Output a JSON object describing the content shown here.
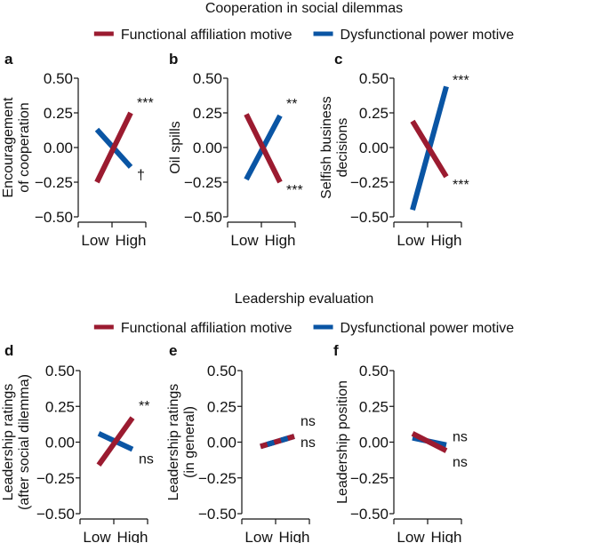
{
  "chart_data": [
    {
      "panel": "a",
      "group": "Cooperation in social dilemmas",
      "type": "line",
      "categories": [
        "Low",
        "High"
      ],
      "ylabel": [
        "Encouragement",
        "of cooperation"
      ],
      "ylim": [
        -0.5,
        0.5
      ],
      "yticks": [
        "0.50",
        "0.25",
        "0.00",
        "−0.25",
        "−0.50"
      ],
      "series": [
        {
          "name": "Functional affiliation motive",
          "values": [
            -0.25,
            0.25
          ],
          "annotation": "***"
        },
        {
          "name": "Dysfunctional power motive",
          "values": [
            0.13,
            -0.14
          ],
          "annotation": "†"
        }
      ]
    },
    {
      "panel": "b",
      "group": "Cooperation in social dilemmas",
      "type": "line",
      "categories": [
        "Low",
        "High"
      ],
      "ylabel": [
        "Oil spills"
      ],
      "ylim": [
        -0.5,
        0.5
      ],
      "yticks": [
        "0.50",
        "0.25",
        "0.00",
        "−0.25",
        "−0.50"
      ],
      "series": [
        {
          "name": "Functional affiliation motive",
          "values": [
            0.24,
            -0.25
          ],
          "annotation": "***"
        },
        {
          "name": "Dysfunctional power motive",
          "values": [
            -0.23,
            0.23
          ],
          "annotation": "**"
        }
      ]
    },
    {
      "panel": "c",
      "group": "Cooperation in social dilemmas",
      "type": "line",
      "categories": [
        "Low",
        "High"
      ],
      "ylabel": [
        "Selfish business",
        "decisions"
      ],
      "ylim": [
        -0.5,
        0.5
      ],
      "yticks": [
        "0.50",
        "0.25",
        "0.00",
        "−0.25",
        "−0.50"
      ],
      "series": [
        {
          "name": "Functional affiliation motive",
          "values": [
            0.19,
            -0.21
          ],
          "annotation": "***"
        },
        {
          "name": "Dysfunctional power motive",
          "values": [
            -0.45,
            0.44
          ],
          "annotation": "***"
        }
      ]
    },
    {
      "panel": "d",
      "group": "Leadership evaluation",
      "type": "line",
      "categories": [
        "Low",
        "High"
      ],
      "ylabel": [
        "Leadership ratings",
        "(after social dilemma)"
      ],
      "ylim": [
        -0.5,
        0.5
      ],
      "yticks": [
        "0.50",
        "0.25",
        "0.00",
        "−0.25",
        "−0.50"
      ],
      "series": [
        {
          "name": "Functional affiliation motive",
          "values": [
            -0.16,
            0.17
          ],
          "annotation": "**"
        },
        {
          "name": "Dysfunctional power motive",
          "values": [
            0.06,
            -0.05
          ],
          "annotation": "ns"
        }
      ]
    },
    {
      "panel": "e",
      "group": "Leadership evaluation",
      "type": "line",
      "categories": [
        "Low",
        "High"
      ],
      "ylabel": [
        "Leadership ratings",
        "(in general)"
      ],
      "ylim": [
        -0.5,
        0.5
      ],
      "yticks": [
        "0.50",
        "0.25",
        "0.00",
        "−0.25",
        "−0.50"
      ],
      "series": [
        {
          "name": "Functional affiliation motive",
          "values": [
            -0.03,
            0.04
          ],
          "annotation": "ns"
        },
        {
          "name": "Dysfunctional power motive",
          "values": [
            -0.03,
            0.04
          ],
          "annotation": "ns"
        }
      ]
    },
    {
      "panel": "f",
      "group": "Leadership evaluation",
      "type": "line",
      "categories": [
        "Low",
        "High"
      ],
      "ylabel": [
        "Leadership position"
      ],
      "ylim": [
        -0.5,
        0.5
      ],
      "yticks": [
        "0.50",
        "0.25",
        "0.00",
        "−0.25",
        "−0.50"
      ],
      "series": [
        {
          "name": "Functional affiliation motive",
          "values": [
            0.06,
            -0.06
          ],
          "annotation": "ns"
        },
        {
          "name": "Dysfunctional power motive",
          "values": [
            0.03,
            -0.02
          ],
          "annotation": "ns"
        }
      ]
    }
  ],
  "titles": {
    "top": "Cooperation in social dilemmas",
    "bottom": "Leadership evaluation"
  },
  "legend": {
    "affiliation": "Functional affiliation motive",
    "power": "Dysfunctional power motive"
  },
  "colors": {
    "affiliation": "#9b1b30",
    "power": "#0a55a4"
  }
}
